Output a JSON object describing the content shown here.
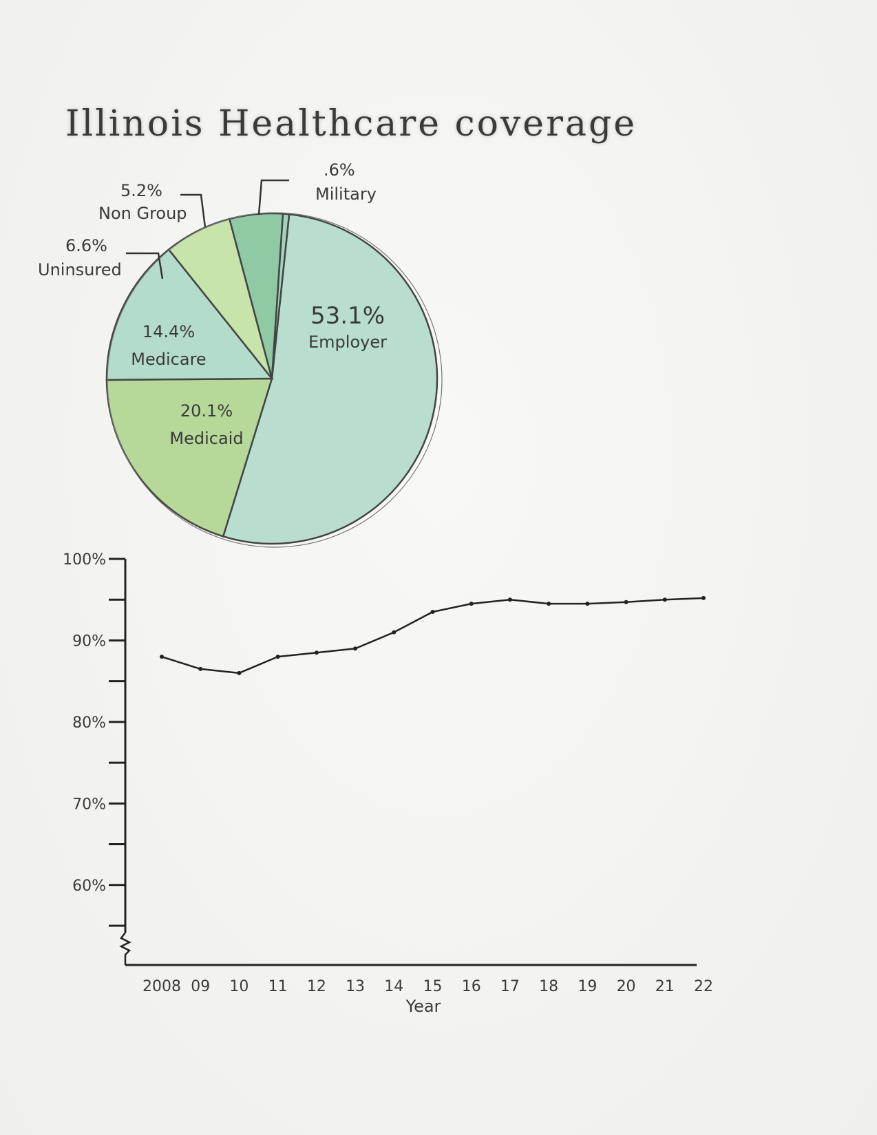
{
  "chart_data": [
    {
      "type": "pie",
      "title": "Illinois Healthcare coverage",
      "slices": [
        {
          "label": "Employer",
          "pct_label": "53.1%",
          "value": 53.1,
          "color": "#b9ded0"
        },
        {
          "label": "Medicaid",
          "pct_label": "20.1%",
          "value": 20.1,
          "color": "#b6d99a"
        },
        {
          "label": "Medicare",
          "pct_label": "14.4%",
          "value": 14.4,
          "color": "#b4dccb"
        },
        {
          "label": "Uninsured",
          "pct_label": "6.6%",
          "value": 6.6,
          "color": "#c8e4aa"
        },
        {
          "label": "Non Group",
          "pct_label": "5.2%",
          "value": 5.2,
          "color": "#8fcaa5"
        },
        {
          "label": "Military",
          "pct_label": ".6%",
          "value": 0.6,
          "color": "#a6d2bd"
        }
      ]
    },
    {
      "type": "line",
      "xlabel": "Year",
      "ylabel": "",
      "ylim": [
        55,
        100
      ],
      "y_ticks": [
        {
          "value": 100,
          "label": "100%"
        },
        {
          "value": 95,
          "label": ""
        },
        {
          "value": 90,
          "label": "90%"
        },
        {
          "value": 85,
          "label": ""
        },
        {
          "value": 80,
          "label": "80%"
        },
        {
          "value": 75,
          "label": ""
        },
        {
          "value": 70,
          "label": "70%"
        },
        {
          "value": 65,
          "label": ""
        },
        {
          "value": 60,
          "label": "60%"
        },
        {
          "value": 55,
          "label": ""
        }
      ],
      "x_tick_labels": [
        "2008",
        "09",
        "10",
        "11",
        "12",
        "13",
        "14",
        "15",
        "16",
        "17",
        "18",
        "19",
        "20",
        "21",
        "22"
      ],
      "x": [
        2008,
        2009,
        2010,
        2011,
        2012,
        2013,
        2014,
        2015,
        2016,
        2017,
        2018,
        2019,
        2020,
        2021,
        2022
      ],
      "values": [
        88,
        86.5,
        86,
        88,
        88.5,
        89,
        91,
        93.5,
        94.5,
        95,
        94.5,
        94.5,
        94.7,
        95,
        95.2
      ],
      "grid": false,
      "axis_break": true
    }
  ]
}
